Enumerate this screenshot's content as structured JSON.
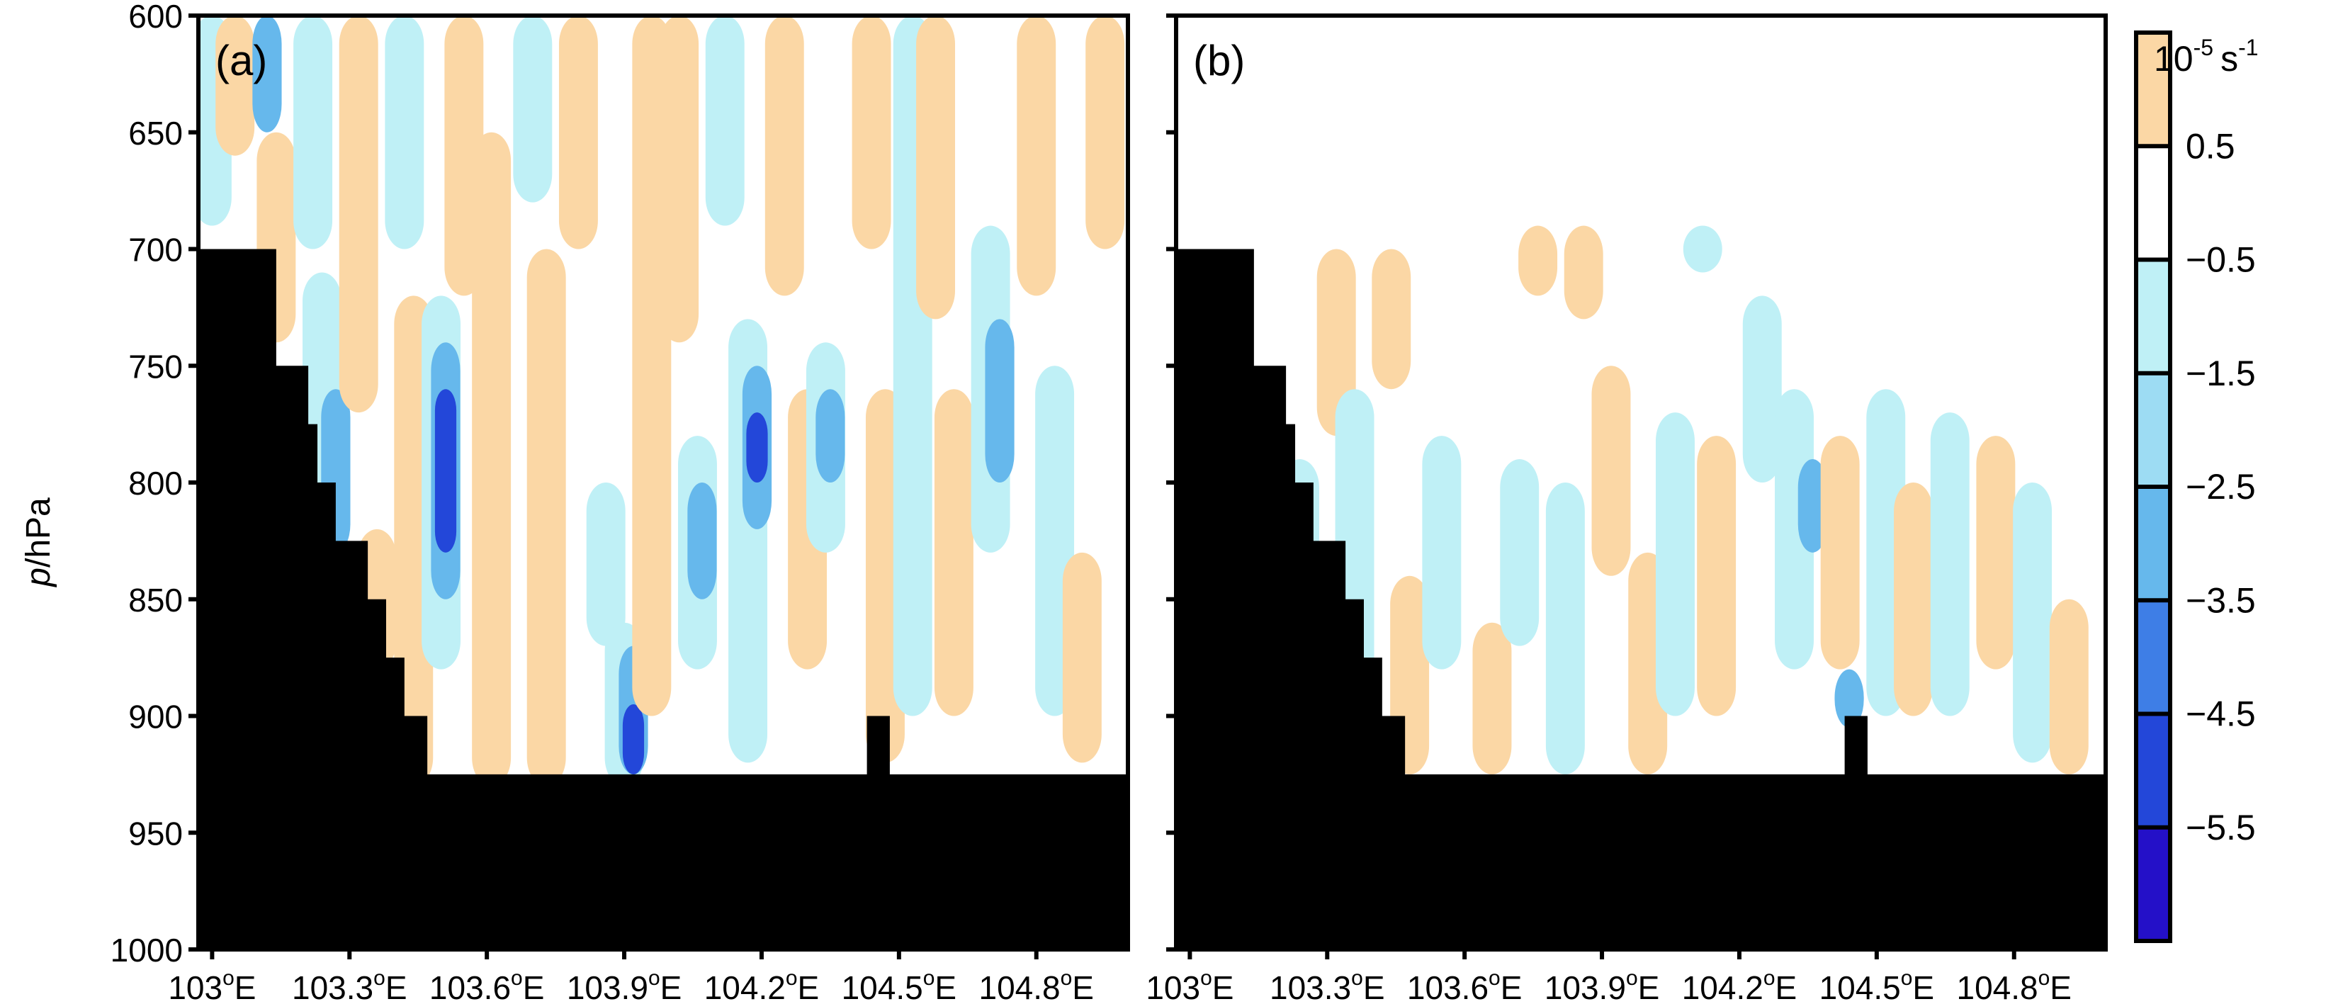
{
  "chart_data": [
    {
      "type": "heatmap",
      "panel_label": "(a)",
      "ylabel_italic": "p",
      "ylabel_rest": "/hPa",
      "y_ticks": [
        "600",
        "650",
        "700",
        "750",
        "800",
        "850",
        "900",
        "950",
        "1000"
      ],
      "y_values": [
        600,
        650,
        700,
        750,
        800,
        850,
        900,
        950,
        1000
      ],
      "ylim": [
        600,
        1000
      ],
      "y_inverted": true,
      "x_ticks": [
        "103",
        "103.3",
        "103.6",
        "103.9",
        "104.2",
        "104.5",
        "104.8"
      ],
      "x_values": [
        103.0,
        103.3,
        103.6,
        103.9,
        104.2,
        104.5,
        104.8
      ],
      "x_tick_suffix": "E",
      "xlim": [
        102.97,
        105.0
      ],
      "terrain_pressure": [
        [
          102.97,
          700
        ],
        [
          103.14,
          750
        ],
        [
          103.21,
          775
        ],
        [
          103.23,
          800
        ],
        [
          103.27,
          825
        ],
        [
          103.34,
          850
        ],
        [
          103.38,
          875
        ],
        [
          103.42,
          900
        ],
        [
          103.47,
          925
        ],
        [
          104.43,
          900
        ],
        [
          104.48,
          925
        ],
        [
          105.0,
          925
        ]
      ],
      "field_bands": [
        {
          "x": 103.0,
          "p_top": 600,
          "p_bot": 690,
          "level": "light-blue"
        },
        {
          "x": 103.05,
          "p_top": 600,
          "p_bot": 660,
          "level": "orange"
        },
        {
          "x": 103.12,
          "p_top": 600,
          "p_bot": 650,
          "level": "blue"
        },
        {
          "x": 103.14,
          "p_top": 650,
          "p_bot": 740,
          "level": "orange"
        },
        {
          "x": 103.22,
          "p_top": 600,
          "p_bot": 700,
          "level": "light-blue"
        },
        {
          "x": 103.24,
          "p_top": 710,
          "p_bot": 900,
          "level": "light-blue"
        },
        {
          "x": 103.27,
          "p_top": 760,
          "p_bot": 830,
          "level": "blue"
        },
        {
          "x": 103.32,
          "p_top": 600,
          "p_bot": 770,
          "level": "orange"
        },
        {
          "x": 103.36,
          "p_top": 820,
          "p_bot": 880,
          "level": "orange"
        },
        {
          "x": 103.42,
          "p_top": 600,
          "p_bot": 700,
          "level": "light-blue"
        },
        {
          "x": 103.44,
          "p_top": 720,
          "p_bot": 930,
          "level": "orange"
        },
        {
          "x": 103.5,
          "p_top": 720,
          "p_bot": 880,
          "level": "light-blue"
        },
        {
          "x": 103.51,
          "p_top": 740,
          "p_bot": 850,
          "level": "blue"
        },
        {
          "x": 103.51,
          "p_top": 760,
          "p_bot": 830,
          "level": "deep-blue"
        },
        {
          "x": 103.55,
          "p_top": 600,
          "p_bot": 720,
          "level": "orange"
        },
        {
          "x": 103.61,
          "p_top": 650,
          "p_bot": 930,
          "level": "orange"
        },
        {
          "x": 103.7,
          "p_top": 600,
          "p_bot": 680,
          "level": "light-blue"
        },
        {
          "x": 103.73,
          "p_top": 700,
          "p_bot": 930,
          "level": "orange"
        },
        {
          "x": 103.8,
          "p_top": 600,
          "p_bot": 700,
          "level": "orange"
        },
        {
          "x": 103.86,
          "p_top": 800,
          "p_bot": 870,
          "level": "light-blue"
        },
        {
          "x": 103.9,
          "p_top": 860,
          "p_bot": 930,
          "level": "light-blue"
        },
        {
          "x": 103.92,
          "p_top": 870,
          "p_bot": 925,
          "level": "blue"
        },
        {
          "x": 103.92,
          "p_top": 895,
          "p_bot": 925,
          "level": "deep-blue"
        },
        {
          "x": 103.96,
          "p_top": 600,
          "p_bot": 900,
          "level": "orange"
        },
        {
          "x": 104.02,
          "p_top": 600,
          "p_bot": 740,
          "level": "orange"
        },
        {
          "x": 104.06,
          "p_top": 780,
          "p_bot": 880,
          "level": "light-blue"
        },
        {
          "x": 104.07,
          "p_top": 800,
          "p_bot": 850,
          "level": "blue"
        },
        {
          "x": 104.12,
          "p_top": 600,
          "p_bot": 690,
          "level": "light-blue"
        },
        {
          "x": 104.17,
          "p_top": 730,
          "p_bot": 920,
          "level": "light-blue"
        },
        {
          "x": 104.19,
          "p_top": 750,
          "p_bot": 820,
          "level": "blue"
        },
        {
          "x": 104.19,
          "p_top": 770,
          "p_bot": 800,
          "level": "deep-blue"
        },
        {
          "x": 104.25,
          "p_top": 600,
          "p_bot": 720,
          "level": "orange"
        },
        {
          "x": 104.3,
          "p_top": 760,
          "p_bot": 880,
          "level": "orange"
        },
        {
          "x": 104.34,
          "p_top": 740,
          "p_bot": 830,
          "level": "light-blue"
        },
        {
          "x": 104.35,
          "p_top": 760,
          "p_bot": 800,
          "level": "blue"
        },
        {
          "x": 104.44,
          "p_top": 600,
          "p_bot": 700,
          "level": "orange"
        },
        {
          "x": 104.47,
          "p_top": 760,
          "p_bot": 920,
          "level": "orange"
        },
        {
          "x": 104.53,
          "p_top": 600,
          "p_bot": 900,
          "level": "light-blue"
        },
        {
          "x": 104.58,
          "p_top": 600,
          "p_bot": 730,
          "level": "orange"
        },
        {
          "x": 104.62,
          "p_top": 760,
          "p_bot": 900,
          "level": "orange"
        },
        {
          "x": 104.7,
          "p_top": 690,
          "p_bot": 830,
          "level": "light-blue"
        },
        {
          "x": 104.72,
          "p_top": 730,
          "p_bot": 800,
          "level": "blue"
        },
        {
          "x": 104.8,
          "p_top": 600,
          "p_bot": 720,
          "level": "orange"
        },
        {
          "x": 104.84,
          "p_top": 750,
          "p_bot": 900,
          "level": "light-blue"
        },
        {
          "x": 104.9,
          "p_top": 830,
          "p_bot": 920,
          "level": "orange"
        },
        {
          "x": 104.95,
          "p_top": 600,
          "p_bot": 700,
          "level": "orange"
        }
      ]
    },
    {
      "type": "heatmap",
      "panel_label": "(b)",
      "y_values": [
        600,
        650,
        700,
        750,
        800,
        850,
        900,
        950,
        1000
      ],
      "ylim": [
        600,
        1000
      ],
      "y_inverted": true,
      "x_ticks": [
        "103",
        "103.3",
        "103.6",
        "103.9",
        "104.2",
        "104.5",
        "104.8"
      ],
      "x_values": [
        103.0,
        103.3,
        103.6,
        103.9,
        104.2,
        104.5,
        104.8
      ],
      "x_tick_suffix": "E",
      "xlim": [
        102.97,
        105.0
      ],
      "terrain_pressure": [
        [
          102.97,
          700
        ],
        [
          103.14,
          750
        ],
        [
          103.21,
          775
        ],
        [
          103.23,
          800
        ],
        [
          103.27,
          825
        ],
        [
          103.34,
          850
        ],
        [
          103.38,
          875
        ],
        [
          103.42,
          900
        ],
        [
          103.47,
          925
        ],
        [
          104.43,
          900
        ],
        [
          104.48,
          925
        ],
        [
          105.0,
          925
        ]
      ],
      "field_bands": [
        {
          "x": 103.24,
          "p_top": 790,
          "p_bot": 880,
          "level": "light-blue"
        },
        {
          "x": 103.32,
          "p_top": 700,
          "p_bot": 780,
          "level": "orange"
        },
        {
          "x": 103.36,
          "p_top": 760,
          "p_bot": 900,
          "level": "light-blue"
        },
        {
          "x": 103.44,
          "p_top": 700,
          "p_bot": 760,
          "level": "orange"
        },
        {
          "x": 103.48,
          "p_top": 840,
          "p_bot": 925,
          "level": "orange"
        },
        {
          "x": 103.55,
          "p_top": 780,
          "p_bot": 880,
          "level": "light-blue"
        },
        {
          "x": 103.66,
          "p_top": 860,
          "p_bot": 925,
          "level": "orange"
        },
        {
          "x": 103.72,
          "p_top": 790,
          "p_bot": 870,
          "level": "light-blue"
        },
        {
          "x": 103.76,
          "p_top": 690,
          "p_bot": 720,
          "level": "orange"
        },
        {
          "x": 103.82,
          "p_top": 800,
          "p_bot": 925,
          "level": "light-blue"
        },
        {
          "x": 103.86,
          "p_top": 690,
          "p_bot": 730,
          "level": "orange"
        },
        {
          "x": 103.92,
          "p_top": 750,
          "p_bot": 840,
          "level": "orange"
        },
        {
          "x": 104.0,
          "p_top": 830,
          "p_bot": 925,
          "level": "orange"
        },
        {
          "x": 104.06,
          "p_top": 770,
          "p_bot": 900,
          "level": "light-blue"
        },
        {
          "x": 104.12,
          "p_top": 690,
          "p_bot": 710,
          "level": "light-blue"
        },
        {
          "x": 104.15,
          "p_top": 780,
          "p_bot": 900,
          "level": "orange"
        },
        {
          "x": 104.25,
          "p_top": 720,
          "p_bot": 800,
          "level": "light-blue"
        },
        {
          "x": 104.32,
          "p_top": 760,
          "p_bot": 880,
          "level": "light-blue"
        },
        {
          "x": 104.36,
          "p_top": 790,
          "p_bot": 830,
          "level": "blue"
        },
        {
          "x": 104.42,
          "p_top": 780,
          "p_bot": 880,
          "level": "orange"
        },
        {
          "x": 104.44,
          "p_top": 880,
          "p_bot": 905,
          "level": "blue"
        },
        {
          "x": 104.52,
          "p_top": 760,
          "p_bot": 900,
          "level": "light-blue"
        },
        {
          "x": 104.58,
          "p_top": 800,
          "p_bot": 900,
          "level": "orange"
        },
        {
          "x": 104.66,
          "p_top": 770,
          "p_bot": 900,
          "level": "light-blue"
        },
        {
          "x": 104.76,
          "p_top": 780,
          "p_bot": 880,
          "level": "orange"
        },
        {
          "x": 104.84,
          "p_top": 800,
          "p_bot": 920,
          "level": "light-blue"
        },
        {
          "x": 104.92,
          "p_top": 850,
          "p_bot": 925,
          "level": "orange"
        }
      ]
    }
  ],
  "colorbar": {
    "unit_base": "10",
    "unit_exp": "-5",
    "unit_mid": "s",
    "unit_exp2": "-1",
    "labels": [
      "0.5",
      "−0.5",
      "−1.5",
      "−2.5",
      "−3.5",
      "−4.5",
      "−5.5"
    ],
    "bin_colors": [
      "#fbd7a5",
      "#ffffff",
      "#bff0f6",
      "#9ddcf3",
      "#66b8ec",
      "#3e7ee6",
      "#2347d9",
      "#2410c8"
    ]
  },
  "level_colors": {
    "orange": "#fbd7a5",
    "light-blue": "#bff0f6",
    "blue": "#66b8ec",
    "deep-blue": "#2347d9"
  },
  "terrain_color": "#000000"
}
